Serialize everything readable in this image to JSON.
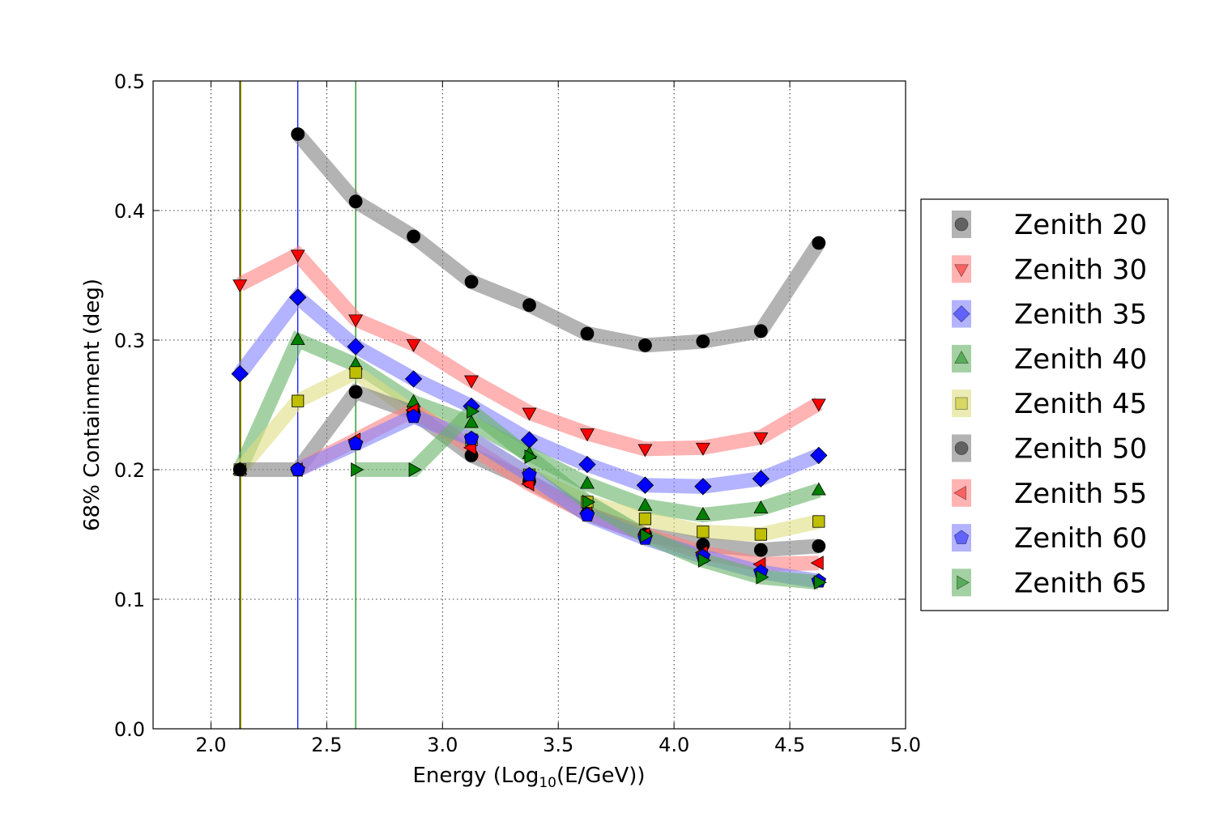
{
  "chart_data": {
    "type": "line",
    "xlabel_main": "Energy (Log",
    "xlabel_sub": "10",
    "xlabel_end": "(E/GeV))",
    "ylabel": "68% Containment (deg)",
    "xlim": [
      1.75,
      5.0
    ],
    "ylim": [
      0.0,
      0.5
    ],
    "xticks": [
      "2.0",
      "2.5",
      "3.0",
      "3.5",
      "4.0",
      "4.5",
      "5.0"
    ],
    "xtick_values": [
      2.0,
      2.5,
      3.0,
      3.5,
      4.0,
      4.5,
      5.0
    ],
    "yticks": [
      "0.0",
      "0.1",
      "0.2",
      "0.3",
      "0.4",
      "0.5"
    ],
    "ytick_values": [
      0.0,
      0.1,
      0.2,
      0.3,
      0.4,
      0.5
    ],
    "grid": true,
    "legend_position": "outside right",
    "vertical_lines": [
      {
        "x": 2.125,
        "color": "#000000"
      },
      {
        "x": 2.13,
        "color": "#bfbf00"
      },
      {
        "x": 2.375,
        "color": "#0000ff"
      },
      {
        "x": 2.625,
        "color": "#008000"
      }
    ],
    "series": [
      {
        "name": "Zenith 20",
        "color": "#000000",
        "band": "#808080",
        "marker": "circle",
        "x": [
          2.375,
          2.625,
          2.875,
          3.125,
          3.375,
          3.625,
          3.875,
          4.125,
          4.375,
          4.625
        ],
        "y": [
          0.459,
          0.407,
          0.38,
          0.345,
          0.327,
          0.305,
          0.296,
          0.299,
          0.307,
          0.375
        ]
      },
      {
        "name": "Zenith 30",
        "color": "#ff0000",
        "band": "#ff8080",
        "marker": "triangle-down",
        "x": [
          2.125,
          2.375,
          2.625,
          2.875,
          3.125,
          3.375,
          3.625,
          3.875,
          4.125,
          4.375,
          4.625
        ],
        "y": [
          0.343,
          0.366,
          0.316,
          0.297,
          0.269,
          0.244,
          0.228,
          0.216,
          0.217,
          0.225,
          0.251
        ]
      },
      {
        "name": "Zenith 35",
        "color": "#0000ff",
        "band": "#8080ff",
        "marker": "diamond",
        "x": [
          2.125,
          2.375,
          2.625,
          2.875,
          3.125,
          3.375,
          3.625,
          3.875,
          4.125,
          4.375,
          4.625
        ],
        "y": [
          0.274,
          0.333,
          0.295,
          0.27,
          0.249,
          0.223,
          0.204,
          0.188,
          0.187,
          0.193,
          0.211
        ]
      },
      {
        "name": "Zenith 40",
        "color": "#008000",
        "band": "#66b366",
        "marker": "triangle-up",
        "x": [
          2.125,
          2.375,
          2.625,
          2.875,
          3.125,
          3.375,
          3.625,
          3.875,
          4.125,
          4.375,
          4.625
        ],
        "y": [
          0.2,
          0.3,
          0.281,
          0.252,
          0.236,
          0.212,
          0.189,
          0.172,
          0.165,
          0.17,
          0.184
        ]
      },
      {
        "name": "Zenith 45",
        "color": "#bfbf00",
        "band": "#dede80",
        "marker": "square",
        "x": [
          2.125,
          2.375,
          2.625,
          2.875,
          3.125,
          3.375,
          3.625,
          3.875,
          4.125,
          4.375,
          4.625
        ],
        "y": [
          0.2,
          0.253,
          0.275,
          0.244,
          0.223,
          0.196,
          0.175,
          0.162,
          0.152,
          0.15,
          0.16
        ]
      },
      {
        "name": "Zenith 50",
        "color": "#000000",
        "band": "#808080",
        "marker": "circle",
        "x": [
          2.125,
          2.375,
          2.625,
          2.875,
          3.125,
          3.375,
          3.625,
          3.875,
          4.125,
          4.375,
          4.625
        ],
        "y": [
          0.2,
          0.2,
          0.26,
          0.244,
          0.211,
          0.191,
          0.166,
          0.15,
          0.142,
          0.138,
          0.141
        ]
      },
      {
        "name": "Zenith 55",
        "color": "#ff0000",
        "band": "#ff8080",
        "marker": "triangle-left",
        "x": [
          2.375,
          2.625,
          2.875,
          3.125,
          3.375,
          3.625,
          3.875,
          4.125,
          4.375,
          4.625
        ],
        "y": [
          0.2,
          0.223,
          0.246,
          0.217,
          0.189,
          0.166,
          0.15,
          0.136,
          0.127,
          0.128
        ]
      },
      {
        "name": "Zenith 60",
        "color": "#0000ff",
        "band": "#8080ff",
        "marker": "pentagon",
        "x": [
          2.375,
          2.625,
          2.875,
          3.125,
          3.375,
          3.625,
          3.875,
          4.125,
          4.375,
          4.625
        ],
        "y": [
          0.2,
          0.22,
          0.241,
          0.224,
          0.196,
          0.165,
          0.147,
          0.133,
          0.121,
          0.114
        ]
      },
      {
        "name": "Zenith 65",
        "color": "#008000",
        "band": "#66b366",
        "marker": "triangle-right",
        "x": [
          2.625,
          2.875,
          3.125,
          3.375,
          3.625,
          3.875,
          4.125,
          4.375,
          4.625
        ],
        "y": [
          0.2,
          0.2,
          0.245,
          0.21,
          0.175,
          0.149,
          0.13,
          0.117,
          0.113
        ]
      }
    ]
  }
}
